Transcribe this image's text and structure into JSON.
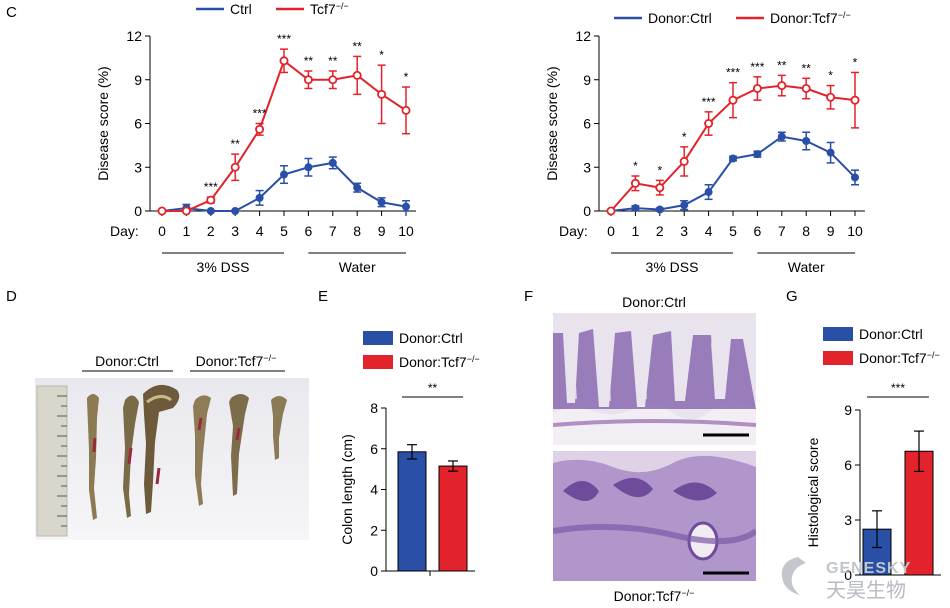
{
  "panel_labels": {
    "c": "C",
    "d": "D",
    "e": "E",
    "f": "F",
    "g": "G"
  },
  "colors": {
    "ctrl": "#2a4fa6",
    "tcf7": "#e2232b",
    "axis": "#000000"
  },
  "chart_data": [
    {
      "id": "c1",
      "type": "line",
      "title": "",
      "ylabel": "Disease score (%)",
      "ylim": [
        0,
        12
      ],
      "yticks": [
        0,
        3,
        6,
        9,
        12
      ],
      "x_prefix": "Day:",
      "x": [
        0,
        1,
        2,
        3,
        4,
        5,
        6,
        7,
        8,
        9,
        10
      ],
      "periods": [
        {
          "label": "3% DSS",
          "from": 0,
          "to": 5
        },
        {
          "label": "Water",
          "from": 6,
          "to": 10
        }
      ],
      "series": [
        {
          "name": "Ctrl",
          "name_suffix": "",
          "color": "#2a4fa6",
          "marker": "filled",
          "values": [
            0,
            0.2,
            0,
            0,
            0.9,
            2.5,
            3.0,
            3.3,
            1.6,
            0.6,
            0.3
          ],
          "errors": [
            0,
            0.25,
            0,
            0,
            0.5,
            0.6,
            0.6,
            0.4,
            0.3,
            0.3,
            0.4
          ]
        },
        {
          "name": "Tcf7",
          "name_suffix": "−/−",
          "color": "#e2232b",
          "marker": "open",
          "values": [
            0,
            0,
            0.75,
            3.0,
            5.6,
            10.3,
            9.0,
            9.0,
            9.3,
            8.0,
            6.9
          ],
          "errors": [
            0,
            0,
            0.2,
            0.9,
            0.4,
            0.8,
            0.6,
            0.6,
            1.3,
            2.0,
            1.6
          ]
        }
      ],
      "significance": [
        "",
        "",
        "***",
        "**",
        "***",
        "***",
        "**",
        "**",
        "**",
        "*",
        "*"
      ]
    },
    {
      "id": "c2",
      "type": "line",
      "title": "",
      "ylabel": "Disease score (%)",
      "ylim": [
        0,
        12
      ],
      "yticks": [
        0,
        3,
        6,
        9,
        12
      ],
      "x_prefix": "Day:",
      "x": [
        0,
        1,
        2,
        3,
        4,
        5,
        6,
        7,
        8,
        9,
        10
      ],
      "periods": [
        {
          "label": "3% DSS",
          "from": 0,
          "to": 5
        },
        {
          "label": "Water",
          "from": 6,
          "to": 10
        }
      ],
      "series": [
        {
          "name": "Donor:Ctrl",
          "name_suffix": "",
          "color": "#2a4fa6",
          "marker": "filled",
          "values": [
            0,
            0.2,
            0.1,
            0.4,
            1.3,
            3.6,
            3.9,
            5.1,
            4.8,
            4.0,
            2.3
          ],
          "errors": [
            0,
            0.15,
            0.1,
            0.3,
            0.5,
            0.15,
            0.2,
            0.3,
            0.6,
            0.7,
            0.5
          ]
        },
        {
          "name": "Donor:Tcf7",
          "name_suffix": "−/−",
          "color": "#e2232b",
          "marker": "open",
          "values": [
            0,
            1.9,
            1.6,
            3.4,
            6.0,
            7.6,
            8.4,
            8.6,
            8.4,
            7.8,
            7.6
          ],
          "errors": [
            0,
            0.5,
            0.5,
            1.0,
            0.8,
            1.2,
            0.8,
            0.7,
            0.7,
            0.8,
            1.9
          ]
        }
      ],
      "significance": [
        "",
        "*",
        "*",
        "*",
        "***",
        "***",
        "***",
        "**",
        "**",
        "*",
        "*"
      ]
    },
    {
      "id": "e",
      "type": "bar",
      "title": "",
      "ylabel": "Colon length (cm)",
      "ylim": [
        0,
        8
      ],
      "yticks": [
        0,
        2,
        4,
        6,
        8
      ],
      "categories": [
        "Donor:Ctrl",
        "Donor:Tcf7"
      ],
      "category_suffixes": [
        "",
        "−/−"
      ],
      "values": [
        5.85,
        5.15
      ],
      "errors": [
        0.35,
        0.25
      ],
      "colors": [
        "#2a4fa6",
        "#e2232b"
      ],
      "significance": "**"
    },
    {
      "id": "g",
      "type": "bar",
      "title": "",
      "ylabel": "Histological score",
      "ylim": [
        0,
        9
      ],
      "yticks": [
        0,
        3,
        6,
        9
      ],
      "categories": [
        "Donor:Ctrl",
        "Donor:Tcf7"
      ],
      "category_suffixes": [
        "",
        "−/−"
      ],
      "values": [
        2.5,
        6.75
      ],
      "errors": [
        1.0,
        1.1
      ],
      "colors": [
        "#2a4fa6",
        "#e2232b"
      ],
      "significance": "***"
    }
  ],
  "panel_d": {
    "label_ctrl": "Donor:Ctrl",
    "label_tcf7": "Donor:Tcf7",
    "label_tcf7_suffix": "−/−"
  },
  "panel_f": {
    "top_title": "Donor:Ctrl",
    "bottom_title": "Donor:Tcf7",
    "bottom_title_suffix": "−/−"
  },
  "watermark": {
    "latin": "GENESKY",
    "cjk": "天昊生物"
  }
}
